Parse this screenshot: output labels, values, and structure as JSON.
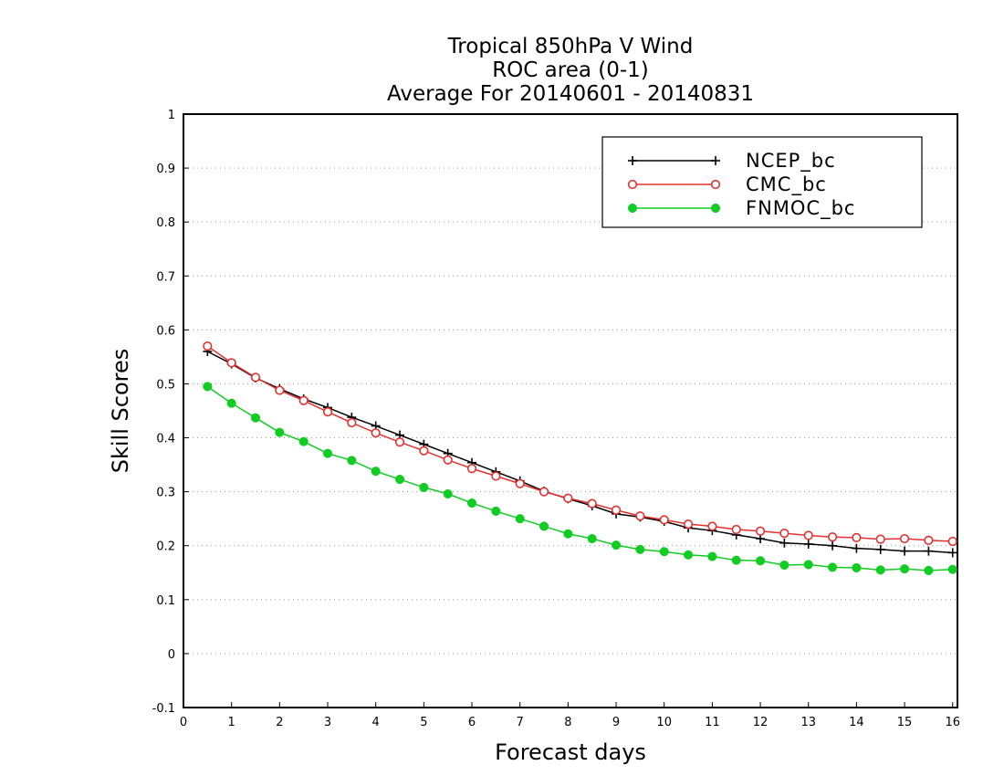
{
  "chart_data": {
    "type": "line",
    "title_lines": [
      "Tropical 850hPa V Wind",
      "ROC area (0-1)",
      "Average For 20140601 - 20140831"
    ],
    "xlabel": "Forecast days",
    "ylabel": "Skill Scores",
    "xlim": [
      0,
      16.1
    ],
    "ylim": [
      -0.1,
      1
    ],
    "xticks": [
      0,
      1,
      2,
      3,
      4,
      5,
      6,
      7,
      8,
      9,
      10,
      11,
      12,
      13,
      14,
      15,
      16
    ],
    "xtick_labels": [
      "0",
      "1",
      "2",
      "3",
      "4",
      "5",
      "6",
      "7",
      "8",
      "9",
      "10",
      "11",
      "12",
      "13",
      "14",
      "15",
      "16"
    ],
    "yticks": [
      -0.1,
      0,
      0.1,
      0.2,
      0.3,
      0.4,
      0.5,
      0.6,
      0.7,
      0.8,
      0.9,
      1
    ],
    "ytick_labels": [
      "-0.1",
      "0",
      "0.1",
      "0.2",
      "0.3",
      "0.4",
      "0.5",
      "0.6",
      "0.7",
      "0.8",
      "0.9",
      "1"
    ],
    "grid": "horizontal-dotted",
    "legend_position": "top-right",
    "x": [
      0.5,
      1,
      1.5,
      2,
      2.5,
      3,
      3.5,
      4,
      4.5,
      5,
      5.5,
      6,
      6.5,
      7,
      7.5,
      8,
      8.5,
      9,
      9.5,
      10,
      10.5,
      11,
      11.5,
      12,
      12.5,
      13,
      13.5,
      14,
      14.5,
      15,
      15.5,
      16
    ],
    "series": [
      {
        "name": "NCEP_bc",
        "color": "#000000",
        "marker": "plus",
        "values": [
          0.56,
          0.537,
          0.511,
          0.491,
          0.472,
          0.456,
          0.438,
          0.422,
          0.405,
          0.388,
          0.371,
          0.354,
          0.337,
          0.32,
          0.301,
          0.287,
          0.274,
          0.259,
          0.253,
          0.245,
          0.233,
          0.228,
          0.22,
          0.213,
          0.205,
          0.203,
          0.2,
          0.195,
          0.193,
          0.19,
          0.19,
          0.187
        ]
      },
      {
        "name": "CMC_bc",
        "color": "#e53030",
        "marker": "open-circle",
        "values": [
          0.57,
          0.539,
          0.512,
          0.488,
          0.469,
          0.448,
          0.428,
          0.409,
          0.392,
          0.376,
          0.359,
          0.343,
          0.329,
          0.315,
          0.3,
          0.288,
          0.278,
          0.266,
          0.255,
          0.248,
          0.24,
          0.236,
          0.23,
          0.227,
          0.223,
          0.219,
          0.216,
          0.215,
          0.212,
          0.213,
          0.21,
          0.208
        ]
      },
      {
        "name": "FNMOC_bc",
        "color": "#11cc22",
        "marker": "filled-circle",
        "values": [
          0.495,
          0.464,
          0.437,
          0.41,
          0.393,
          0.371,
          0.358,
          0.338,
          0.323,
          0.308,
          0.296,
          0.279,
          0.264,
          0.25,
          0.236,
          0.222,
          0.213,
          0.201,
          0.193,
          0.189,
          0.183,
          0.18,
          0.173,
          0.172,
          0.164,
          0.165,
          0.16,
          0.159,
          0.155,
          0.157,
          0.154,
          0.156
        ]
      }
    ]
  }
}
